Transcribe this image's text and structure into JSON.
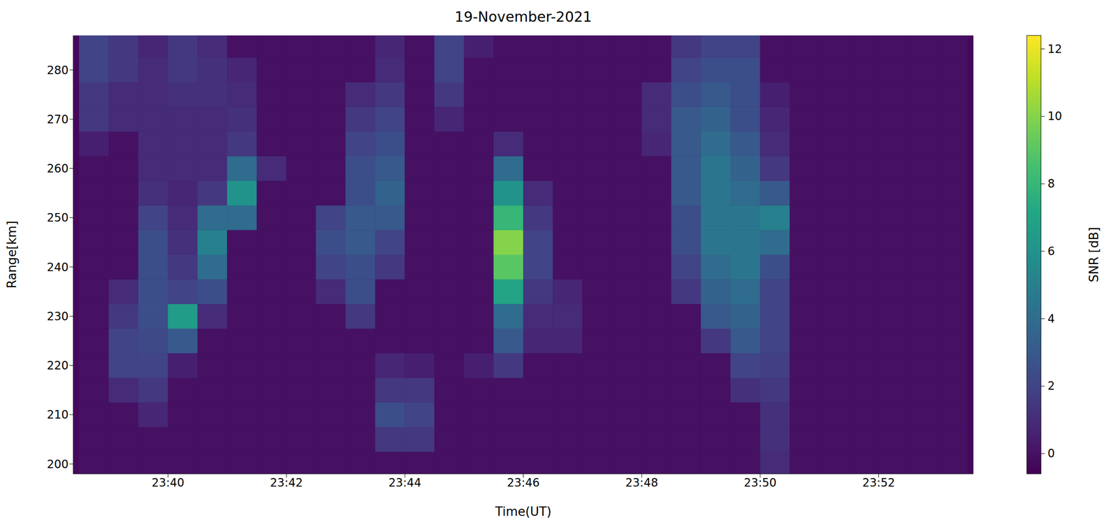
{
  "chart_data": {
    "type": "heatmap",
    "title": "19-November-2021",
    "x_label": "Time(UT)",
    "y_label": "Range[km]",
    "xlim": [
      1418.4,
      1433.6
    ],
    "xticks": [
      {
        "value": 1420,
        "label": "23:40"
      },
      {
        "value": 1422,
        "label": "23:42"
      },
      {
        "value": 1424,
        "label": "23:44"
      },
      {
        "value": 1426,
        "label": "23:46"
      },
      {
        "value": 1428,
        "label": "23:48"
      },
      {
        "value": 1430,
        "label": "23:50"
      },
      {
        "value": 1432,
        "label": "23:52"
      }
    ],
    "ylim": [
      198,
      287
    ],
    "yticks": [
      200,
      210,
      220,
      230,
      240,
      250,
      260,
      270,
      280
    ],
    "x": [
      1418.75,
      1419.25,
      1419.75,
      1420.25,
      1420.75,
      1421.25,
      1421.75,
      1422.25,
      1422.75,
      1423.25,
      1423.75,
      1424.25,
      1424.75,
      1425.25,
      1425.75,
      1426.25,
      1426.75,
      1427.25,
      1427.75,
      1428.25,
      1428.75,
      1429.25,
      1429.75,
      1430.25,
      1430.75,
      1431.25,
      1431.75,
      1432.25,
      1432.75,
      1433.25
    ],
    "y": [
      200,
      205,
      210,
      215,
      220,
      225,
      230,
      235,
      240,
      245,
      250,
      255,
      260,
      265,
      270,
      275,
      280,
      285
    ],
    "cells": [
      [
        0,
        0,
        0,
        0,
        0,
        0,
        0,
        0,
        0,
        0,
        0,
        0,
        0,
        0,
        0,
        0,
        0,
        0,
        0,
        0,
        0,
        0,
        0,
        1,
        0,
        0,
        0,
        0,
        0,
        0
      ],
      [
        0,
        0,
        0,
        0,
        0,
        0,
        0,
        0,
        0,
        0,
        1.5,
        1.5,
        0,
        0,
        0,
        0,
        0,
        0,
        0,
        0,
        0,
        0,
        0,
        1.2,
        0,
        0,
        0,
        0,
        0,
        0
      ],
      [
        0,
        0,
        0.8,
        0,
        0,
        0,
        0,
        0,
        0,
        0,
        2.5,
        2,
        0,
        0,
        0,
        0,
        0,
        0,
        0,
        0,
        0,
        0,
        0,
        1.2,
        0,
        0,
        0,
        0,
        0,
        0
      ],
      [
        0,
        1,
        1.5,
        0,
        0,
        0,
        0,
        0,
        0,
        0,
        1.5,
        1.5,
        0,
        0,
        0,
        0,
        0,
        0,
        0,
        0,
        0,
        0,
        1.2,
        1.5,
        0,
        0,
        0,
        0,
        0,
        0
      ],
      [
        0,
        2,
        2,
        0.5,
        0,
        0,
        0,
        0,
        0,
        0,
        0.8,
        0.5,
        0,
        0.5,
        1.5,
        0,
        0,
        0,
        0,
        0,
        0,
        0,
        2,
        1.8,
        0,
        0,
        0,
        0,
        0,
        0
      ],
      [
        0,
        2,
        2.3,
        3,
        0,
        0,
        0,
        0,
        0,
        0,
        0,
        0,
        0,
        0,
        3,
        0.8,
        0.8,
        0,
        0,
        0,
        0,
        1.5,
        3,
        2,
        0,
        0,
        0,
        0,
        0,
        0
      ],
      [
        0,
        1.5,
        2.5,
        6.5,
        1,
        0,
        0,
        0,
        0,
        1.5,
        0,
        0,
        0,
        0,
        4,
        1,
        1,
        0,
        0,
        0,
        0,
        3,
        3.5,
        2,
        0,
        0,
        0,
        0,
        0,
        0
      ],
      [
        0,
        1,
        2.5,
        2,
        2.5,
        0,
        0,
        0,
        1,
        2.5,
        0,
        0,
        0,
        0,
        7,
        1.5,
        0.8,
        0,
        0,
        0,
        1.5,
        3.5,
        4,
        2,
        0,
        0,
        0,
        0,
        0,
        0
      ],
      [
        0,
        0,
        2.5,
        1.5,
        4,
        0,
        0,
        0,
        2,
        2.5,
        1.5,
        0,
        0,
        0,
        9,
        2,
        0,
        0,
        0,
        0,
        2,
        4,
        4.5,
        2.5,
        0,
        0,
        0,
        0,
        0,
        0
      ],
      [
        0,
        0,
        2.5,
        1.2,
        5,
        0,
        0,
        0,
        2.5,
        3,
        2,
        0,
        0,
        0,
        10,
        2,
        0,
        0,
        0,
        0,
        2.5,
        4.5,
        4.5,
        4,
        0,
        0,
        0,
        0,
        0,
        0
      ],
      [
        0,
        0,
        2,
        1,
        4,
        4,
        0,
        0,
        2,
        3,
        3,
        0,
        0,
        0,
        8,
        1.5,
        0,
        0,
        0,
        0,
        2.5,
        4.5,
        4.5,
        5,
        0,
        0,
        0,
        0,
        0,
        0
      ],
      [
        0,
        0,
        1.2,
        0.8,
        1.5,
        6,
        0,
        0,
        0,
        2.5,
        3.5,
        0,
        0,
        0,
        6,
        1,
        0,
        0,
        0,
        0,
        3,
        4.5,
        4,
        3,
        0,
        0,
        0,
        0,
        0,
        0
      ],
      [
        0,
        0,
        1,
        1,
        1,
        4,
        1,
        0,
        0,
        2.5,
        3,
        0,
        0,
        0,
        4,
        0,
        0,
        0,
        0,
        0,
        3,
        4.5,
        3.5,
        1.5,
        0,
        0,
        0,
        0,
        0,
        0
      ],
      [
        0.5,
        0,
        1,
        1,
        1,
        1.5,
        0,
        0,
        0,
        2,
        2.5,
        0,
        0,
        0,
        1,
        0,
        0,
        0,
        0,
        0.8,
        3,
        4,
        3,
        1,
        0,
        0,
        0,
        0,
        0,
        0
      ],
      [
        1.5,
        1,
        1,
        1,
        1,
        1.2,
        0,
        0,
        0,
        1.5,
        2,
        0,
        0.8,
        0,
        0,
        0,
        0,
        0,
        0,
        1,
        3,
        3.5,
        2.5,
        0.8,
        0,
        0,
        0,
        0,
        0,
        0
      ],
      [
        1.5,
        1,
        1,
        1.2,
        1.2,
        1,
        0,
        0,
        0,
        1,
        1.5,
        0,
        1.5,
        0,
        0,
        0,
        0,
        0,
        0,
        1,
        2.5,
        3,
        2.5,
        0.5,
        0,
        0,
        0,
        0,
        0,
        0
      ],
      [
        2,
        1.5,
        1,
        1.5,
        1.2,
        0.8,
        0,
        0,
        0,
        0,
        1,
        0,
        2,
        0,
        0,
        0,
        0,
        0,
        0,
        0,
        2,
        2.5,
        2.5,
        0,
        0,
        0,
        0,
        0,
        0,
        0
      ],
      [
        2,
        1.5,
        0.8,
        1.5,
        1,
        0,
        0,
        0,
        0,
        0,
        0.8,
        0,
        2,
        0.5,
        0,
        0,
        0,
        0,
        0,
        0,
        1.5,
        2,
        2,
        0,
        0,
        0,
        0,
        0,
        0,
        0
      ]
    ],
    "colorbar": {
      "label": "SNR [dB]",
      "lim": [
        -0.6,
        12.4
      ],
      "ticks": [
        0,
        2,
        4,
        6,
        8,
        10,
        12
      ]
    }
  }
}
